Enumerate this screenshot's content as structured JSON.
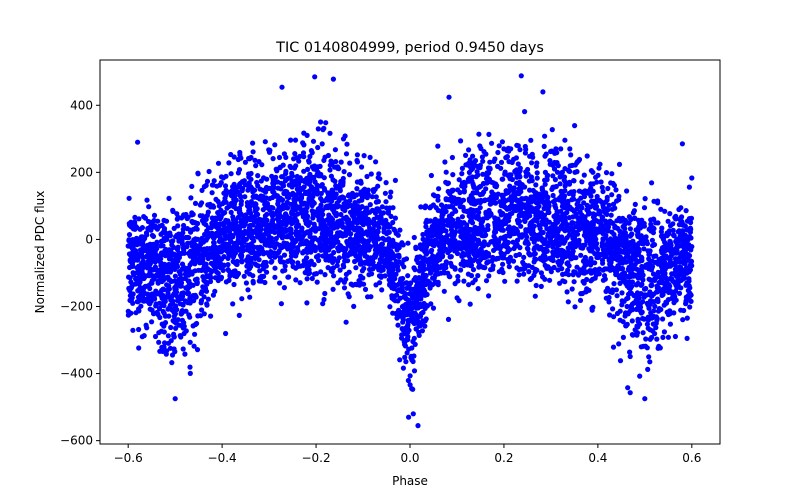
{
  "chart_data": {
    "type": "scatter",
    "title": "TIC 0140804999, period 0.9450 days",
    "xlabel": "Phase",
    "ylabel": "Normalized PDC flux",
    "xlim": [
      -0.66,
      0.66
    ],
    "ylim": [
      -610,
      535
    ],
    "xticks": [
      -0.6,
      -0.4,
      -0.2,
      0.0,
      0.2,
      0.4,
      0.6
    ],
    "xtick_labels": [
      "−0.6",
      "−0.4",
      "−0.2",
      "0.0",
      "0.2",
      "0.4",
      "0.6"
    ],
    "yticks": [
      -600,
      -400,
      -200,
      0,
      200,
      400
    ],
    "ytick_labels": [
      "−600",
      "−400",
      "−200",
      "0",
      "200",
      "400"
    ],
    "grid": false,
    "marker_color": "#0000ff",
    "series": [
      {
        "name": "PDC flux",
        "x_range": [
          -0.6,
          0.6
        ],
        "profile": {
          "phase": [
            -0.6,
            -0.55,
            -0.5,
            -0.45,
            -0.4,
            -0.3,
            -0.2,
            -0.1,
            -0.05,
            -0.02,
            0.0,
            0.02,
            0.05,
            0.1,
            0.2,
            0.3,
            0.4,
            0.45,
            0.5,
            0.55,
            0.6
          ],
          "center": [
            -60,
            -110,
            -190,
            -80,
            40,
            90,
            110,
            60,
            -10,
            -140,
            -300,
            -140,
            -10,
            60,
            110,
            90,
            40,
            -80,
            -190,
            -110,
            -60
          ],
          "spread": [
            120,
            110,
            130,
            150,
            140,
            120,
            120,
            130,
            100,
            110,
            120,
            110,
            100,
            130,
            120,
            120,
            140,
            150,
            130,
            110,
            120
          ]
        },
        "outliers": [
          {
            "x": -0.203,
            "y": 485
          },
          {
            "x": -0.163,
            "y": 478
          },
          {
            "x": 0.237,
            "y": 488
          },
          {
            "x": 0.283,
            "y": 440
          },
          {
            "x": 0.083,
            "y": 424
          },
          {
            "x": 0.017,
            "y": -555
          },
          {
            "x": -0.003,
            "y": -530
          },
          {
            "x": 0.007,
            "y": -520
          },
          {
            "x": -0.5,
            "y": -475
          },
          {
            "x": 0.5,
            "y": -475
          },
          {
            "x": -0.58,
            "y": 290
          },
          {
            "x": 0.58,
            "y": 285
          },
          {
            "x": -0.57,
            "y": -290
          },
          {
            "x": 0.59,
            "y": -295
          }
        ]
      }
    ]
  }
}
